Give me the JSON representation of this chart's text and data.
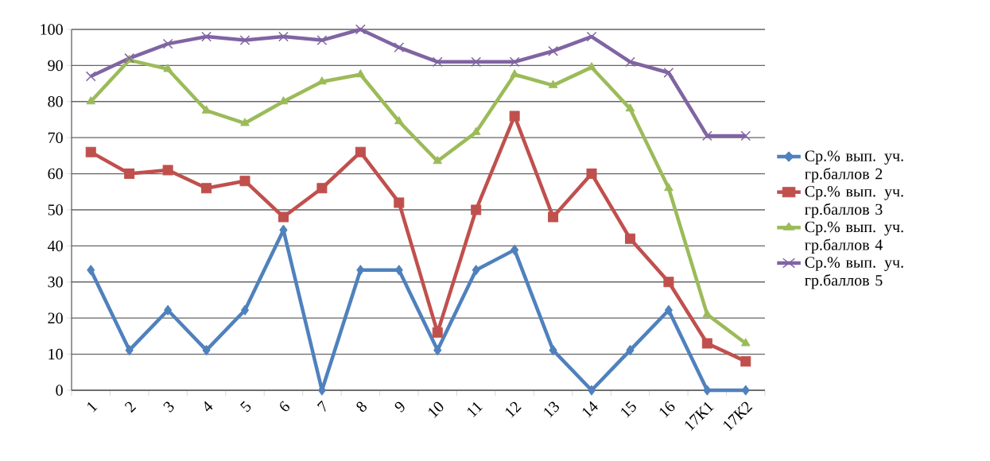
{
  "chart_data": {
    "type": "line",
    "categories": [
      "1",
      "2",
      "3",
      "4",
      "5",
      "6",
      "7",
      "8",
      "9",
      "10",
      "11",
      "12",
      "13",
      "14",
      "15",
      "16",
      "17К1",
      "17К2"
    ],
    "series": [
      {
        "name": "Ср.% вып. уч. гр.баллов 2",
        "color": "#4f81bd",
        "marker": "diamond",
        "values": [
          33.3,
          11.1,
          22.2,
          11.1,
          22.2,
          44.4,
          0,
          33.3,
          33.3,
          11.1,
          33.3,
          38.9,
          11.1,
          0,
          11.1,
          22.2,
          0,
          0
        ]
      },
      {
        "name": "Ср.% вып. уч. гр.баллов 3",
        "color": "#c0504d",
        "marker": "square",
        "values": [
          66,
          60,
          61,
          56,
          58,
          48,
          56,
          66,
          52,
          16,
          50,
          76,
          48,
          60,
          42,
          30,
          13,
          8
        ]
      },
      {
        "name": "Ср.% вып. уч. гр.баллов 4",
        "color": "#9bbb59",
        "marker": "triangle",
        "values": [
          80,
          91.5,
          89,
          77.5,
          74,
          80,
          85.5,
          87.5,
          74.5,
          63.5,
          71.5,
          87.5,
          84.5,
          89.5,
          78,
          56,
          21,
          13
        ]
      },
      {
        "name": "Ср.% вып. уч. гр.баллов 5",
        "color": "#8064a2",
        "marker": "cross",
        "values": [
          87,
          92,
          96,
          98,
          97,
          98,
          97,
          100,
          95,
          91,
          91,
          91,
          94,
          98,
          91,
          88,
          70.5,
          70.5
        ]
      }
    ],
    "ylim": [
      0,
      100
    ],
    "yticks": [
      0,
      10,
      20,
      30,
      40,
      50,
      60,
      70,
      80,
      90,
      100
    ],
    "grid": "y",
    "legend": "right"
  }
}
